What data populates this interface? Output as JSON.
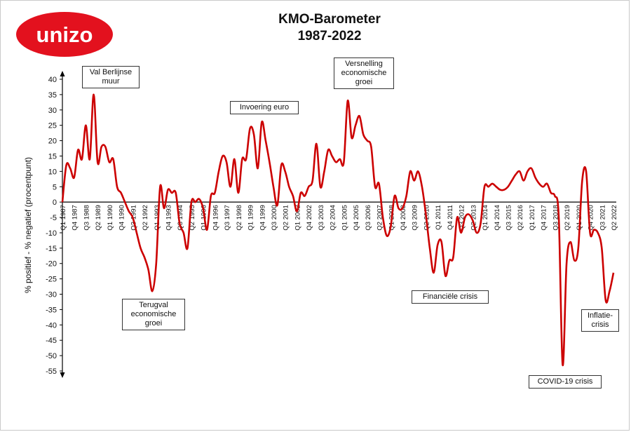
{
  "brand": {
    "name": "unizo",
    "color": "#e3111e"
  },
  "chart_data": {
    "type": "line",
    "title": "KMO-Barometer",
    "subtitle": "1987-2022",
    "ylabel": "% positief - % negatief (procentpunt)",
    "xlabel": "",
    "ylim": [
      -55,
      40
    ],
    "yticks": [
      40,
      35,
      30,
      25,
      20,
      15,
      10,
      5,
      0,
      -5,
      -10,
      -15,
      -20,
      -25,
      -30,
      -35,
      -40,
      -45,
      -50,
      -55
    ],
    "grid": false,
    "series_color": "#cc0000",
    "x_tick_labels": [
      "Q1 1987",
      "Q4 1987",
      "Q3 1988",
      "Q2 1989",
      "Q1 1990",
      "Q4 1990",
      "Q3 1991",
      "Q2 1992",
      "Q1 1993",
      "Q4 1993",
      "Q3 1994",
      "Q2 1995",
      "Q1 1996",
      "Q4 1996",
      "Q3 1997",
      "Q2 1998",
      "Q1 1999",
      "Q4 1999",
      "Q3 2000",
      "Q2 2001",
      "Q1 2002",
      "Q4 2002",
      "Q3 2003",
      "Q2 2004",
      "Q1 2005",
      "Q4 2005",
      "Q3 2006",
      "Q2 2007",
      "Q1 2008",
      "Q4 2008",
      "Q3 2009",
      "Q2 2010",
      "Q1 2011",
      "Q4 2011",
      "Q3 2012",
      "Q2 2013",
      "Q1 2014",
      "Q4 2014",
      "Q3 2015",
      "Q2 2016",
      "Q1 2017",
      "Q4 2017",
      "Q3 2018",
      "Q2 2019",
      "Q1 2020",
      "Q4 2020",
      "Q3 2021",
      "Q2 2022"
    ],
    "x_tick_labels_top": [
      "Q1 1987",
      "Q3 1988",
      "Q1 1990",
      "Q3 1991",
      "Q1 1993",
      "Q3 1994",
      "Q1 1996",
      "Q3 1997",
      "Q1 1999",
      "Q3 2000",
      "Q1 2002",
      "Q3 2003",
      "Q1 2005",
      "Q3 2006",
      "Q1 2008",
      "Q3 2009",
      "Q1 2011",
      "Q3 2012",
      "Q1 2014",
      "Q3 2015",
      "Q1 2017",
      "Q3 2018",
      "Q1 2020",
      "Q3 2021"
    ],
    "x_tick_labels_bottom": [
      "1987",
      "Q4 1987",
      "1989",
      "Q4 1990",
      "1992",
      "Q4 1993",
      "1995",
      "Q4 1996",
      "1998",
      "Q4 1999",
      "2001",
      "Q4 2002",
      "2004",
      "Q4 2005",
      "2007",
      "Q4 2008",
      "2010",
      "Q4 2011",
      "2013",
      "Q4 2014",
      "2016",
      "Q4 2017",
      "2019",
      "Q4 2020",
      "2022"
    ],
    "series": [
      {
        "points": [
          [
            "1987-Q1",
            0
          ],
          [
            "1987-Q2",
            12
          ],
          [
            "1987-Q3",
            11
          ],
          [
            "1987-Q4",
            8
          ],
          [
            "1988-Q1",
            17
          ],
          [
            "1988-Q2",
            14
          ],
          [
            "1988-Q3",
            25
          ],
          [
            "1988-Q4",
            14
          ],
          [
            "1989-Q1",
            35
          ],
          [
            "1989-Q2",
            13
          ],
          [
            "1989-Q3",
            18
          ],
          [
            "1989-Q4",
            18
          ],
          [
            "1990-Q1",
            13
          ],
          [
            "1990-Q2",
            14
          ],
          [
            "1990-Q3",
            5
          ],
          [
            "1990-Q4",
            3
          ],
          [
            "1991-Q1",
            0
          ],
          [
            "1991-Q2",
            -3
          ],
          [
            "1991-Q3",
            -5
          ],
          [
            "1991-Q4",
            -10
          ],
          [
            "1992-Q1",
            -15
          ],
          [
            "1992-Q2",
            -18
          ],
          [
            "1992-Q3",
            -22
          ],
          [
            "1992-Q4",
            -29
          ],
          [
            "1993-Q1",
            -20
          ],
          [
            "1993-Q2",
            5
          ],
          [
            "1993-Q3",
            -2
          ],
          [
            "1993-Q4",
            4
          ],
          [
            "1994-Q1",
            3
          ],
          [
            "1994-Q2",
            3
          ],
          [
            "1994-Q3",
            -7
          ],
          [
            "1994-Q4",
            -10
          ],
          [
            "1995-Q1",
            -15
          ],
          [
            "1995-Q2",
            0
          ],
          [
            "1995-Q3",
            0
          ],
          [
            "1995-Q4",
            1
          ],
          [
            "1996-Q1",
            -2
          ],
          [
            "1996-Q2",
            -9
          ],
          [
            "1996-Q3",
            2
          ],
          [
            "1996-Q4",
            3
          ],
          [
            "1997-Q1",
            10
          ],
          [
            "1997-Q2",
            15
          ],
          [
            "1997-Q3",
            13
          ],
          [
            "1997-Q4",
            5
          ],
          [
            "1998-Q1",
            14
          ],
          [
            "1998-Q2",
            3
          ],
          [
            "1998-Q3",
            14
          ],
          [
            "1998-Q4",
            14
          ],
          [
            "1999-Q1",
            24
          ],
          [
            "1999-Q2",
            22
          ],
          [
            "1999-Q3",
            11
          ],
          [
            "1999-Q4",
            26
          ],
          [
            "2000-Q1",
            20
          ],
          [
            "2000-Q2",
            13
          ],
          [
            "2000-Q3",
            5
          ],
          [
            "2000-Q4",
            -1
          ],
          [
            "2001-Q1",
            12
          ],
          [
            "2001-Q2",
            10
          ],
          [
            "2001-Q3",
            5
          ],
          [
            "2001-Q4",
            2
          ],
          [
            "2002-Q1",
            -3
          ],
          [
            "2002-Q2",
            3
          ],
          [
            "2002-Q3",
            2
          ],
          [
            "2002-Q4",
            5
          ],
          [
            "2003-Q1",
            7
          ],
          [
            "2003-Q2",
            19
          ],
          [
            "2003-Q3",
            5
          ],
          [
            "2003-Q4",
            10
          ],
          [
            "2004-Q1",
            17
          ],
          [
            "2004-Q2",
            15
          ],
          [
            "2004-Q3",
            13
          ],
          [
            "2004-Q4",
            14
          ],
          [
            "2005-Q1",
            13
          ],
          [
            "2005-Q2",
            33
          ],
          [
            "2005-Q3",
            21
          ],
          [
            "2005-Q4",
            25
          ],
          [
            "2006-Q1",
            28
          ],
          [
            "2006-Q2",
            22
          ],
          [
            "2006-Q3",
            20
          ],
          [
            "2006-Q4",
            18
          ],
          [
            "2007-Q1",
            5
          ],
          [
            "2007-Q2",
            6
          ],
          [
            "2007-Q3",
            -5
          ],
          [
            "2007-Q4",
            -11
          ],
          [
            "2008-Q1",
            -8
          ],
          [
            "2008-Q2",
            2
          ],
          [
            "2008-Q3",
            -2
          ],
          [
            "2008-Q4",
            -2
          ],
          [
            "2009-Q1",
            2
          ],
          [
            "2009-Q2",
            10
          ],
          [
            "2009-Q3",
            7
          ],
          [
            "2009-Q4",
            10
          ],
          [
            "2010-Q1",
            5
          ],
          [
            "2010-Q2",
            -4
          ],
          [
            "2010-Q3",
            -15
          ],
          [
            "2010-Q4",
            -23
          ],
          [
            "2011-Q1",
            -14
          ],
          [
            "2011-Q2",
            -13
          ],
          [
            "2011-Q3",
            -24
          ],
          [
            "2011-Q4",
            -19
          ],
          [
            "2012-Q1",
            -18
          ],
          [
            "2012-Q2",
            -5
          ],
          [
            "2012-Q3",
            -10
          ],
          [
            "2012-Q4",
            -5
          ],
          [
            "2013-Q1",
            -4
          ],
          [
            "2013-Q2",
            -6
          ],
          [
            "2013-Q3",
            -10
          ],
          [
            "2013-Q4",
            -7
          ],
          [
            "2014-Q1",
            5
          ],
          [
            "2014-Q2",
            5
          ],
          [
            "2014-Q3",
            6
          ],
          [
            "2014-Q4",
            5
          ],
          [
            "2015-Q1",
            4
          ],
          [
            "2015-Q2",
            4
          ],
          [
            "2015-Q3",
            5
          ],
          [
            "2015-Q4",
            7
          ],
          [
            "2016-Q1",
            9
          ],
          [
            "2016-Q2",
            10
          ],
          [
            "2016-Q3",
            7
          ],
          [
            "2016-Q4",
            10
          ],
          [
            "2017-Q1",
            11
          ],
          [
            "2017-Q2",
            8
          ],
          [
            "2017-Q3",
            6
          ],
          [
            "2017-Q4",
            5
          ],
          [
            "2018-Q1",
            6
          ],
          [
            "2018-Q2",
            3
          ],
          [
            "2018-Q3",
            2
          ],
          [
            "2018-Q4",
            -5
          ],
          [
            "2019-Q1",
            -53
          ],
          [
            "2019-Q2",
            -20
          ],
          [
            "2019-Q3",
            -13
          ],
          [
            "2019-Q4",
            -19
          ],
          [
            "2020-Q1",
            -15
          ],
          [
            "2020-Q2",
            7
          ],
          [
            "2020-Q3",
            10
          ],
          [
            "2020-Q4",
            -10
          ],
          [
            "2021-Q1",
            -9
          ],
          [
            "2021-Q2",
            -10
          ],
          [
            "2021-Q3",
            -15
          ],
          [
            "2021-Q4",
            -32
          ],
          [
            "2022-Q1",
            -29
          ],
          [
            "2022-Q2",
            -23
          ]
        ]
      }
    ],
    "annotations": [
      {
        "id": "val-berlijnse-muur",
        "text": "Val Berlijnse muur"
      },
      {
        "id": "terugval",
        "text": "Terugval economische groei"
      },
      {
        "id": "invoering-euro",
        "text": "Invoering euro"
      },
      {
        "id": "versnelling",
        "text": "Versnelling economische groei"
      },
      {
        "id": "financiele-crisis",
        "text": "Financiële crisis"
      },
      {
        "id": "covid",
        "text": "COVID-19 crisis"
      },
      {
        "id": "inflatie",
        "text": "Inflatie-crisis"
      }
    ]
  }
}
